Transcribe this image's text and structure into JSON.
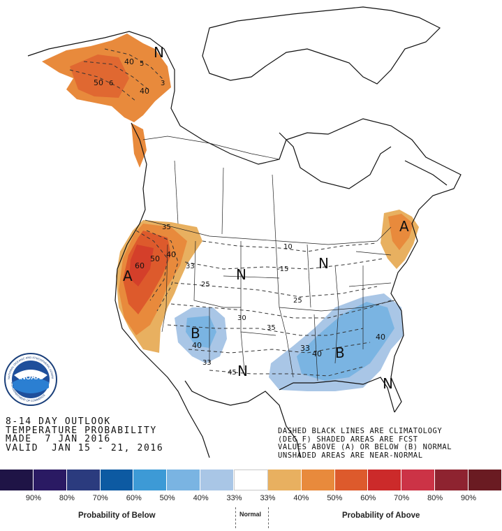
{
  "outlook": {
    "line1": "8-14 DAY OUTLOOK",
    "line2": "TEMPERATURE PROBABILITY",
    "line3": "MADE  7 JAN 2016",
    "line4": "VALID  JAN 15 - 21, 2016"
  },
  "legend_note": {
    "line1": "DASHED BLACK LINES ARE CLIMATOLOGY",
    "line2": "(DEG F) SHADED AREAS ARE FCST",
    "line3": "VALUES ABOVE (A) OR BELOW (B) NORMAL",
    "line4": "UNSHADED AREAS ARE NEAR-NORMAL"
  },
  "noaa_logo": {
    "center": "NOAA",
    "ring": "NATIONAL OCEANIC AND ATMOSPHERIC ADMINISTRATION",
    "ring_bottom": "U.S. DEPARTMENT OF COMMERCE"
  },
  "map_labels": {
    "a_west": "A",
    "a_northeast": "A",
    "b_southwest": "B",
    "b_southeast": "B",
    "n_alaska": "N",
    "n_plains": "N",
    "n_great_lakes": "N",
    "n_texas": "N",
    "n_florida": "N",
    "ak_40a": "40",
    "ak_40b": "40",
    "ak_50": "50",
    "ak_5": "5",
    "ak_3": "3",
    "ak_6": "6",
    "w_35": "35",
    "w_40": "40",
    "w_50": "50",
    "w_60": "60",
    "sw_40": "40",
    "sw_33": "33",
    "se_33": "33",
    "se_40a": "40",
    "se_40b": "40",
    "clim_10": "10",
    "clim_15": "-15",
    "clim_25a": "25",
    "clim_25b": "25",
    "clim_30": "30",
    "clim_35": "35",
    "clim_45": "45",
    "clim_33": "33"
  },
  "scale": {
    "below_label": "Probability of Below",
    "normal_label": "Normal",
    "above_label": "Probability of Above",
    "percentages": [
      "90%",
      "80%",
      "70%",
      "60%",
      "50%",
      "40%",
      "33%",
      "33%",
      "40%",
      "50%",
      "60%",
      "70%",
      "80%",
      "90%"
    ],
    "colors": [
      "#1f1446",
      "#2a1a63",
      "#2b3b7e",
      "#0d5aa2",
      "#3d9ad6",
      "#7ab4e2",
      "#a9c6e6",
      "#ffffff",
      "#e8b060",
      "#e88a3c",
      "#dd5a2c",
      "#cc2a2a",
      "#cc3346",
      "#8e2330",
      "#6a1b22"
    ]
  }
}
